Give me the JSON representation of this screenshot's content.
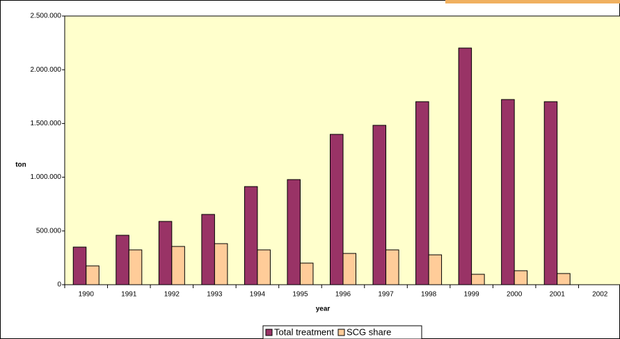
{
  "chart_data": {
    "type": "bar",
    "x_label": "year",
    "y_label": "ton",
    "categories": [
      "1990",
      "1991",
      "1992",
      "1993",
      "1994",
      "1995",
      "1996",
      "1997",
      "1998",
      "1999",
      "2000",
      "2001",
      "2002"
    ],
    "series": [
      {
        "name": "Total treatment",
        "color": "#993366",
        "values": [
          350000,
          460000,
          589000,
          654000,
          913000,
          978000,
          1399000,
          1483000,
          1703000,
          2202000,
          1723000,
          1703000,
          null
        ]
      },
      {
        "name": "SCG share",
        "color": "#ffcc99",
        "values": [
          175000,
          324000,
          356000,
          382000,
          324000,
          201000,
          291000,
          324000,
          278000,
          97000,
          130000,
          104000,
          null
        ]
      }
    ],
    "ylim": [
      0,
      2500000
    ],
    "yticks": [
      0,
      {
        "value": 500000,
        "label": "500.000"
      },
      {
        "value": 1000000,
        "label": "1.000.000"
      },
      {
        "value": 1500000,
        "label": "1.500.000"
      },
      {
        "value": 2000000,
        "label": "2.000.000"
      },
      {
        "value": 2500000,
        "label": "2.500.000"
      }
    ],
    "plot_background": "#ffffcc",
    "legend": "bottom"
  }
}
